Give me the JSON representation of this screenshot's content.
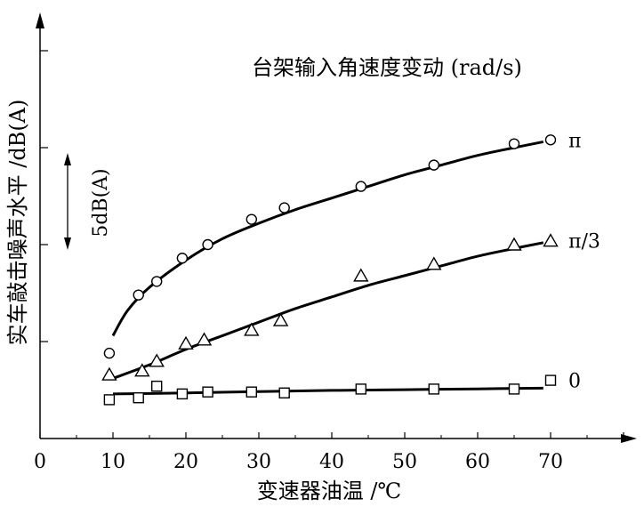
{
  "chart_data": {
    "type": "scatter",
    "xlabel": "变速器油温 /℃",
    "ylabel": "实车敲击噪声水平 /dB(A)",
    "legend_title": "台架输入角速度变动 (rad/s)",
    "scale_bar_label": "5dB(A)",
    "scale_bar_db": 5,
    "xlim": [
      0,
      85
    ],
    "x_ticks": [
      0,
      10,
      20,
      30,
      40,
      50,
      60,
      70
    ],
    "x_tick_labels": [
      "0",
      "10",
      "20",
      "30",
      "40",
      "50",
      "60",
      "70"
    ],
    "y_unit_note": "relative dB(A), y tick spacing = 5 dB(A)",
    "ylim": [
      0,
      20
    ],
    "y_ticks": [
      5,
      10,
      15,
      20
    ],
    "grid": false,
    "series": [
      {
        "name": "π",
        "marker": "circle",
        "points": [
          [
            9.5,
            4.4
          ],
          [
            13.5,
            7.4
          ],
          [
            16,
            8.1
          ],
          [
            19.5,
            9.3
          ],
          [
            23,
            10.0
          ],
          [
            29,
            11.3
          ],
          [
            33.5,
            11.9
          ],
          [
            44,
            13.0
          ],
          [
            54,
            14.1
          ],
          [
            65,
            15.2
          ],
          [
            70,
            15.4
          ]
        ],
        "fit": [
          [
            10,
            5.3
          ],
          [
            12,
            6.6
          ],
          [
            15,
            7.8
          ],
          [
            20,
            9.2
          ],
          [
            25,
            10.3
          ],
          [
            30,
            11.1
          ],
          [
            35,
            11.8
          ],
          [
            40,
            12.4
          ],
          [
            45,
            13.0
          ],
          [
            50,
            13.6
          ],
          [
            55,
            14.1
          ],
          [
            60,
            14.6
          ],
          [
            65,
            15.0
          ],
          [
            69,
            15.3
          ]
        ]
      },
      {
        "name": "π/3",
        "marker": "triangle",
        "points": [
          [
            9.5,
            3.3
          ],
          [
            14,
            3.5
          ],
          [
            16,
            4.0
          ],
          [
            20,
            4.9
          ],
          [
            22.5,
            5.1
          ],
          [
            29,
            5.6
          ],
          [
            33,
            6.1
          ],
          [
            44,
            8.4
          ],
          [
            54,
            9.0
          ],
          [
            65,
            10.0
          ],
          [
            70,
            10.2
          ]
        ],
        "fit": [
          [
            10,
            3.1
          ],
          [
            15,
            3.8
          ],
          [
            20,
            4.6
          ],
          [
            25,
            5.3
          ],
          [
            30,
            6.0
          ],
          [
            35,
            6.7
          ],
          [
            40,
            7.3
          ],
          [
            45,
            7.9
          ],
          [
            50,
            8.4
          ],
          [
            55,
            8.9
          ],
          [
            60,
            9.4
          ],
          [
            65,
            9.8
          ],
          [
            69,
            10.1
          ]
        ]
      },
      {
        "name": "0",
        "marker": "square",
        "points": [
          [
            9.5,
            2.0
          ],
          [
            13.5,
            2.1
          ],
          [
            16,
            2.7
          ],
          [
            19.5,
            2.3
          ],
          [
            23,
            2.4
          ],
          [
            29,
            2.4
          ],
          [
            33.5,
            2.35
          ],
          [
            44,
            2.55
          ],
          [
            54,
            2.55
          ],
          [
            65,
            2.55
          ],
          [
            70,
            3.0
          ]
        ],
        "fit": [
          [
            10,
            2.3
          ],
          [
            20,
            2.35
          ],
          [
            30,
            2.42
          ],
          [
            40,
            2.48
          ],
          [
            50,
            2.52
          ],
          [
            60,
            2.56
          ],
          [
            69,
            2.6
          ]
        ]
      }
    ]
  }
}
